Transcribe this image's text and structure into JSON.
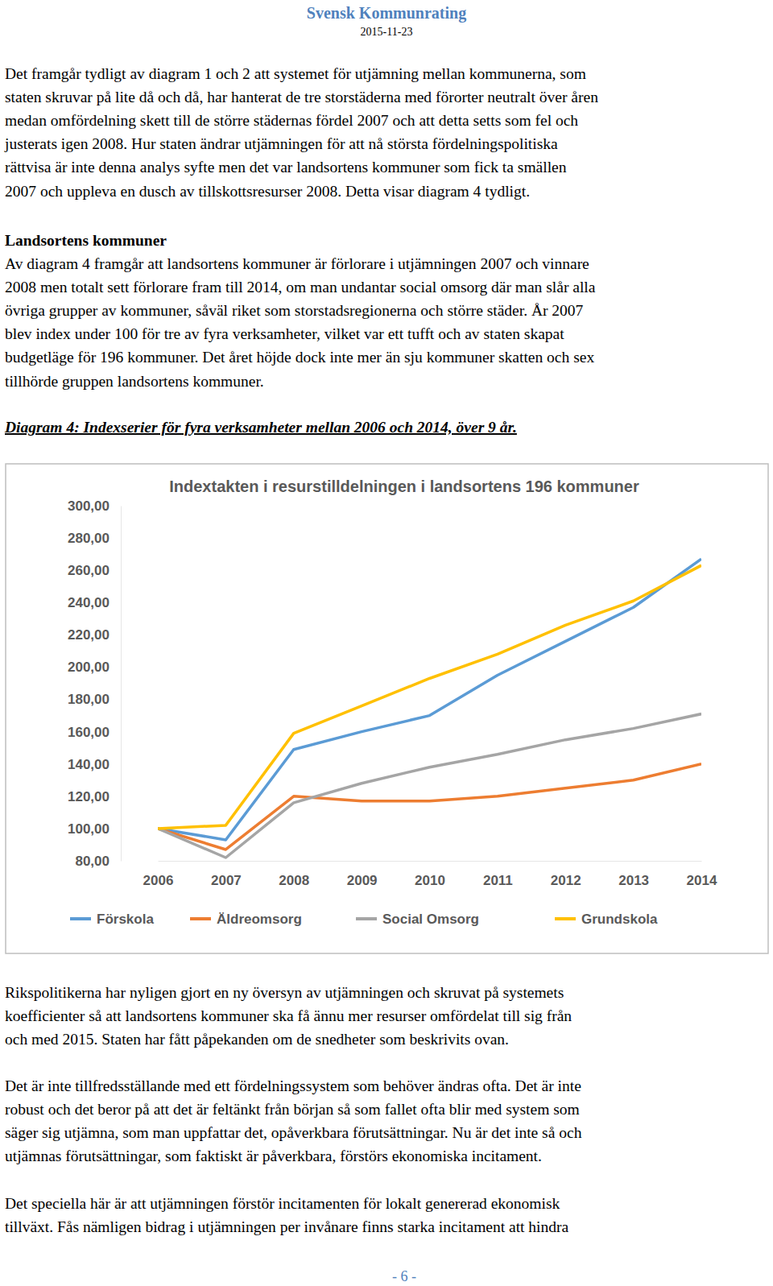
{
  "header": {
    "title": "Svensk Kommunrating",
    "date": "2015-11-23"
  },
  "paragraph_1": [
    "Det framgår tydligt av diagram 1 och 2 att systemet för utjämning mellan kommunerna, som",
    "staten skruvar på lite då och då, har hanterat de tre storstäderna med förorter neutralt över åren",
    "medan omfördelning skett till de större städernas fördel 2007 och att detta setts som fel och",
    "justerats igen 2008. Hur staten ändrar utjämningen för att nå största fördelningspolitiska",
    "rättvisa är inte denna analys syfte men det var landsortens kommuner som fick ta smällen",
    "2007 och uppleva en dusch av tillskottsresurser 2008. Detta visar diagram 4 tydligt."
  ],
  "heading": "Landsortens kommuner",
  "paragraph_2": [
    "Av diagram 4 framgår att landsortens kommuner är förlorare i utjämningen 2007 och vinnare",
    "2008 men totalt sett förlorare fram till 2014, om man undantar social omsorg där man slår alla",
    "övriga grupper av kommuner, såväl riket som storstadsregionerna och större städer. År 2007",
    "blev index under 100 för tre av fyra verksamheter, vilket var ett tufft och av staten skapat",
    "budgetläge för 196 kommuner. Det året höjde dock inte mer än sju kommuner skatten och sex",
    "tillhörde gruppen landsortens kommuner."
  ],
  "caption": "Diagram 4: Indexserier för fyra verksamheter mellan 2006 och 2014, över 9 år.",
  "chart_data": {
    "type": "line",
    "title": "Indextakten i resurstilldelningen i landsortens 196 kommuner",
    "categories": [
      "2006",
      "2007",
      "2008",
      "2009",
      "2010",
      "2011",
      "2012",
      "2013",
      "2014"
    ],
    "series": [
      {
        "name": "Förskola",
        "color": "#5b9bd5",
        "values": [
          100,
          93,
          149,
          160,
          170,
          195,
          216,
          237,
          267
        ]
      },
      {
        "name": "Äldreomsorg",
        "color": "#ed7d31",
        "values": [
          100,
          87,
          120,
          117,
          117,
          120,
          125,
          130,
          140
        ]
      },
      {
        "name": "Social Omsorg",
        "color": "#a5a5a5",
        "values": [
          100,
          82,
          116,
          128,
          138,
          146,
          155,
          162,
          171
        ]
      },
      {
        "name": "Grundskola",
        "color": "#ffc000",
        "values": [
          100,
          102,
          159,
          176,
          193,
          208,
          226,
          241,
          263
        ]
      }
    ],
    "ylim": [
      80,
      300
    ],
    "yticks": [
      {
        "value": 80,
        "label": "80,00"
      },
      {
        "value": 100,
        "label": "100,00"
      },
      {
        "value": 120,
        "label": "120,00"
      },
      {
        "value": 140,
        "label": "140,00"
      },
      {
        "value": 160,
        "label": "160,00"
      },
      {
        "value": 180,
        "label": "180,00"
      },
      {
        "value": 200,
        "label": "200,00"
      },
      {
        "value": 220,
        "label": "220,00"
      },
      {
        "value": 240,
        "label": "240,00"
      },
      {
        "value": 260,
        "label": "260,00"
      },
      {
        "value": 280,
        "label": "280,00"
      },
      {
        "value": 300,
        "label": "300,00"
      }
    ],
    "grid": false,
    "legend": "bottom"
  },
  "paragraphs_after": [
    [
      "Rikspolitikerna har nyligen gjort en ny översyn av utjämningen och skruvat på systemets",
      "koefficienter så att landsortens kommuner ska få ännu mer resurser omfördelat till sig från",
      "och med 2015. Staten har fått påpekanden om de snedheter som beskrivits ovan."
    ],
    [
      "Det är inte tillfredsställande med ett fördelningssystem som behöver ändras ofta. Det är inte",
      "robust och det beror på att det är feltänkt från början så som fallet ofta blir med system som",
      "säger sig utjämna, som man uppfattar det, opåverkbara förutsättningar. Nu är det inte så och",
      "utjämnas förutsättningar, som faktiskt är påverkbara, förstörs ekonomiska incitament."
    ],
    [
      "Det speciella här är att utjämningen förstör incitamenten för lokalt genererad ekonomisk",
      "tillväxt. Fås nämligen bidrag i utjämningen per invånare finns starka incitament att hindra"
    ]
  ],
  "footer": {
    "page": "- 6 -"
  }
}
